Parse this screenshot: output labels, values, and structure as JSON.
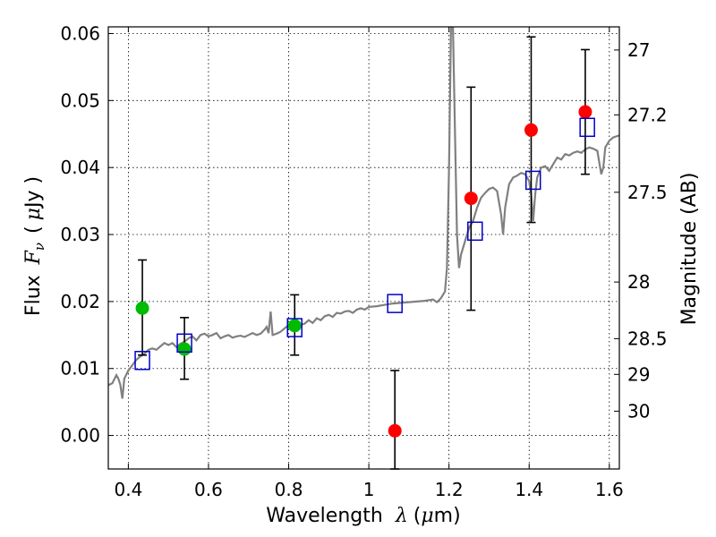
{
  "chart_data": {
    "type": "scatter",
    "xlabel_text": "Wavelength",
    "xlabel_symbol": "λ",
    "xlabel_unit_open": "(",
    "xlabel_unit_mu": "μ",
    "xlabel_unit_rest": "m)",
    "ylabel_text": "Flux",
    "ylabel_symbol": "F",
    "ylabel_sub": "ν",
    "ylabel_unit_open": "(",
    "ylabel_unit_mu": "μ",
    "ylabel_unit_rest": "Jy )",
    "y2label": "Magnitude (AB)",
    "xlim": [
      0.35,
      1.625
    ],
    "ylim": [
      -0.005,
      0.061
    ],
    "x_ticks": [
      0.4,
      0.6,
      0.8,
      1.0,
      1.2,
      1.4,
      1.6
    ],
    "x_tick_labels": [
      "0.4",
      "0.6",
      "0.8",
      "1",
      "1.2",
      "1.4",
      "1.6"
    ],
    "y_ticks": [
      0.0,
      0.01,
      0.02,
      0.03,
      0.04,
      0.05,
      0.06
    ],
    "y_tick_labels": [
      "0.00",
      "0.01",
      "0.02",
      "0.03",
      "0.04",
      "0.05",
      "0.06"
    ],
    "mag_ticks": [
      27,
      27.2,
      27.5,
      28,
      28.5,
      29,
      30
    ],
    "mag_tick_labels": [
      "27",
      "27.2",
      "27.5",
      "28",
      "28.5",
      "29",
      "30"
    ],
    "grid": true,
    "colors": {
      "model_line": "#808080",
      "green_marker": "#00bb00",
      "red_marker": "#ff0000",
      "model_box": "#0000cc",
      "error_bar": "#000000"
    },
    "series": [
      {
        "name": "model spectrum",
        "kind": "line",
        "points": [
          [
            0.35,
            0.0075
          ],
          [
            0.36,
            0.0078
          ],
          [
            0.37,
            0.009
          ],
          [
            0.375,
            0.0085
          ],
          [
            0.38,
            0.0076
          ],
          [
            0.385,
            0.0055
          ],
          [
            0.39,
            0.0085
          ],
          [
            0.4,
            0.0097
          ],
          [
            0.41,
            0.0105
          ],
          [
            0.42,
            0.0113
          ],
          [
            0.43,
            0.0118
          ],
          [
            0.44,
            0.0122
          ],
          [
            0.45,
            0.0128
          ],
          [
            0.46,
            0.013
          ],
          [
            0.47,
            0.0128
          ],
          [
            0.48,
            0.0133
          ],
          [
            0.49,
            0.0138
          ],
          [
            0.5,
            0.0135
          ],
          [
            0.51,
            0.0138
          ],
          [
            0.52,
            0.0132
          ],
          [
            0.53,
            0.0137
          ],
          [
            0.54,
            0.014
          ],
          [
            0.55,
            0.0145
          ],
          [
            0.56,
            0.0148
          ],
          [
            0.57,
            0.0142
          ],
          [
            0.58,
            0.015
          ],
          [
            0.59,
            0.0152
          ],
          [
            0.6,
            0.0148
          ],
          [
            0.61,
            0.015
          ],
          [
            0.62,
            0.0153
          ],
          [
            0.63,
            0.0145
          ],
          [
            0.64,
            0.0148
          ],
          [
            0.65,
            0.015
          ],
          [
            0.66,
            0.0146
          ],
          [
            0.67,
            0.0148
          ],
          [
            0.68,
            0.0149
          ],
          [
            0.69,
            0.0147
          ],
          [
            0.7,
            0.015
          ],
          [
            0.71,
            0.0153
          ],
          [
            0.72,
            0.015
          ],
          [
            0.73,
            0.0152
          ],
          [
            0.74,
            0.0158
          ],
          [
            0.745,
            0.0162
          ],
          [
            0.75,
            0.0153
          ],
          [
            0.755,
            0.0185
          ],
          [
            0.76,
            0.015
          ],
          [
            0.77,
            0.0152
          ],
          [
            0.78,
            0.0155
          ],
          [
            0.79,
            0.016
          ],
          [
            0.8,
            0.0165
          ],
          [
            0.81,
            0.0163
          ],
          [
            0.82,
            0.0168
          ],
          [
            0.83,
            0.0165
          ],
          [
            0.84,
            0.0167
          ],
          [
            0.85,
            0.0172
          ],
          [
            0.86,
            0.0168
          ],
          [
            0.87,
            0.0175
          ],
          [
            0.88,
            0.0172
          ],
          [
            0.89,
            0.0178
          ],
          [
            0.9,
            0.018
          ],
          [
            0.91,
            0.0177
          ],
          [
            0.92,
            0.0183
          ],
          [
            0.93,
            0.0182
          ],
          [
            0.94,
            0.0185
          ],
          [
            0.95,
            0.0186
          ],
          [
            0.96,
            0.0183
          ],
          [
            0.97,
            0.0188
          ],
          [
            0.98,
            0.019
          ],
          [
            0.99,
            0.0188
          ],
          [
            1.0,
            0.0192
          ],
          [
            1.02,
            0.0193
          ],
          [
            1.04,
            0.0195
          ],
          [
            1.06,
            0.0197
          ],
          [
            1.08,
            0.0198
          ],
          [
            1.1,
            0.0199
          ],
          [
            1.12,
            0.02
          ],
          [
            1.14,
            0.0201
          ],
          [
            1.16,
            0.0203
          ],
          [
            1.17,
            0.0199
          ],
          [
            1.18,
            0.0205
          ],
          [
            1.19,
            0.0215
          ],
          [
            1.195,
            0.025
          ],
          [
            1.2,
            0.04
          ],
          [
            1.205,
            0.061
          ],
          [
            1.21,
            0.061
          ],
          [
            1.215,
            0.045
          ],
          [
            1.22,
            0.03
          ],
          [
            1.225,
            0.025
          ],
          [
            1.23,
            0.027
          ],
          [
            1.24,
            0.029
          ],
          [
            1.25,
            0.031
          ],
          [
            1.26,
            0.032
          ],
          [
            1.27,
            0.034
          ],
          [
            1.28,
            0.0355
          ],
          [
            1.29,
            0.0362
          ],
          [
            1.3,
            0.0368
          ],
          [
            1.31,
            0.037
          ],
          [
            1.32,
            0.0365
          ],
          [
            1.33,
            0.033
          ],
          [
            1.335,
            0.03
          ],
          [
            1.34,
            0.034
          ],
          [
            1.35,
            0.0375
          ],
          [
            1.36,
            0.0385
          ],
          [
            1.37,
            0.0388
          ],
          [
            1.38,
            0.0392
          ],
          [
            1.39,
            0.039
          ],
          [
            1.4,
            0.038
          ],
          [
            1.405,
            0.036
          ],
          [
            1.41,
            0.032
          ],
          [
            1.415,
            0.036
          ],
          [
            1.42,
            0.0385
          ],
          [
            1.43,
            0.04
          ],
          [
            1.44,
            0.0402
          ],
          [
            1.45,
            0.0395
          ],
          [
            1.46,
            0.0405
          ],
          [
            1.47,
            0.0415
          ],
          [
            1.48,
            0.0412
          ],
          [
            1.49,
            0.042
          ],
          [
            1.5,
            0.0418
          ],
          [
            1.51,
            0.0422
          ],
          [
            1.52,
            0.0424
          ],
          [
            1.53,
            0.0422
          ],
          [
            1.54,
            0.0427
          ],
          [
            1.55,
            0.043
          ],
          [
            1.56,
            0.0428
          ],
          [
            1.57,
            0.0425
          ],
          [
            1.58,
            0.039
          ],
          [
            1.585,
            0.04
          ],
          [
            1.59,
            0.043
          ],
          [
            1.6,
            0.044
          ],
          [
            1.61,
            0.0445
          ],
          [
            1.625,
            0.0448
          ]
        ]
      },
      {
        "name": "ground-based photometry",
        "kind": "marker",
        "marker": "circle-green",
        "points": [
          {
            "x": 0.435,
            "y": 0.019,
            "err_low": 0.012,
            "err_high": 0.0262
          },
          {
            "x": 0.54,
            "y": 0.0129,
            "err_low": 0.0084,
            "err_high": 0.0176
          },
          {
            "x": 0.815,
            "y": 0.0164,
            "err_low": 0.012,
            "err_high": 0.021
          }
        ]
      },
      {
        "name": "space-based photometry",
        "kind": "marker",
        "marker": "circle-red",
        "points": [
          {
            "x": 1.065,
            "y": 0.0007,
            "err_low": -0.005,
            "err_high": 0.0097
          },
          {
            "x": 1.255,
            "y": 0.0354,
            "err_low": 0.0187,
            "err_high": 0.052
          },
          {
            "x": 1.405,
            "y": 0.0456,
            "err_low": 0.0318,
            "err_high": 0.0595
          },
          {
            "x": 1.54,
            "y": 0.0483,
            "err_low": 0.039,
            "err_high": 0.0576
          }
        ]
      },
      {
        "name": "model photometry",
        "kind": "marker",
        "marker": "square-open-blue",
        "points": [
          {
            "x": 0.435,
            "y": 0.0112
          },
          {
            "x": 0.54,
            "y": 0.0138
          },
          {
            "x": 0.815,
            "y": 0.0161
          },
          {
            "x": 1.065,
            "y": 0.0197
          },
          {
            "x": 1.265,
            "y": 0.0305
          },
          {
            "x": 1.41,
            "y": 0.0381
          },
          {
            "x": 1.545,
            "y": 0.046
          }
        ]
      }
    ]
  }
}
